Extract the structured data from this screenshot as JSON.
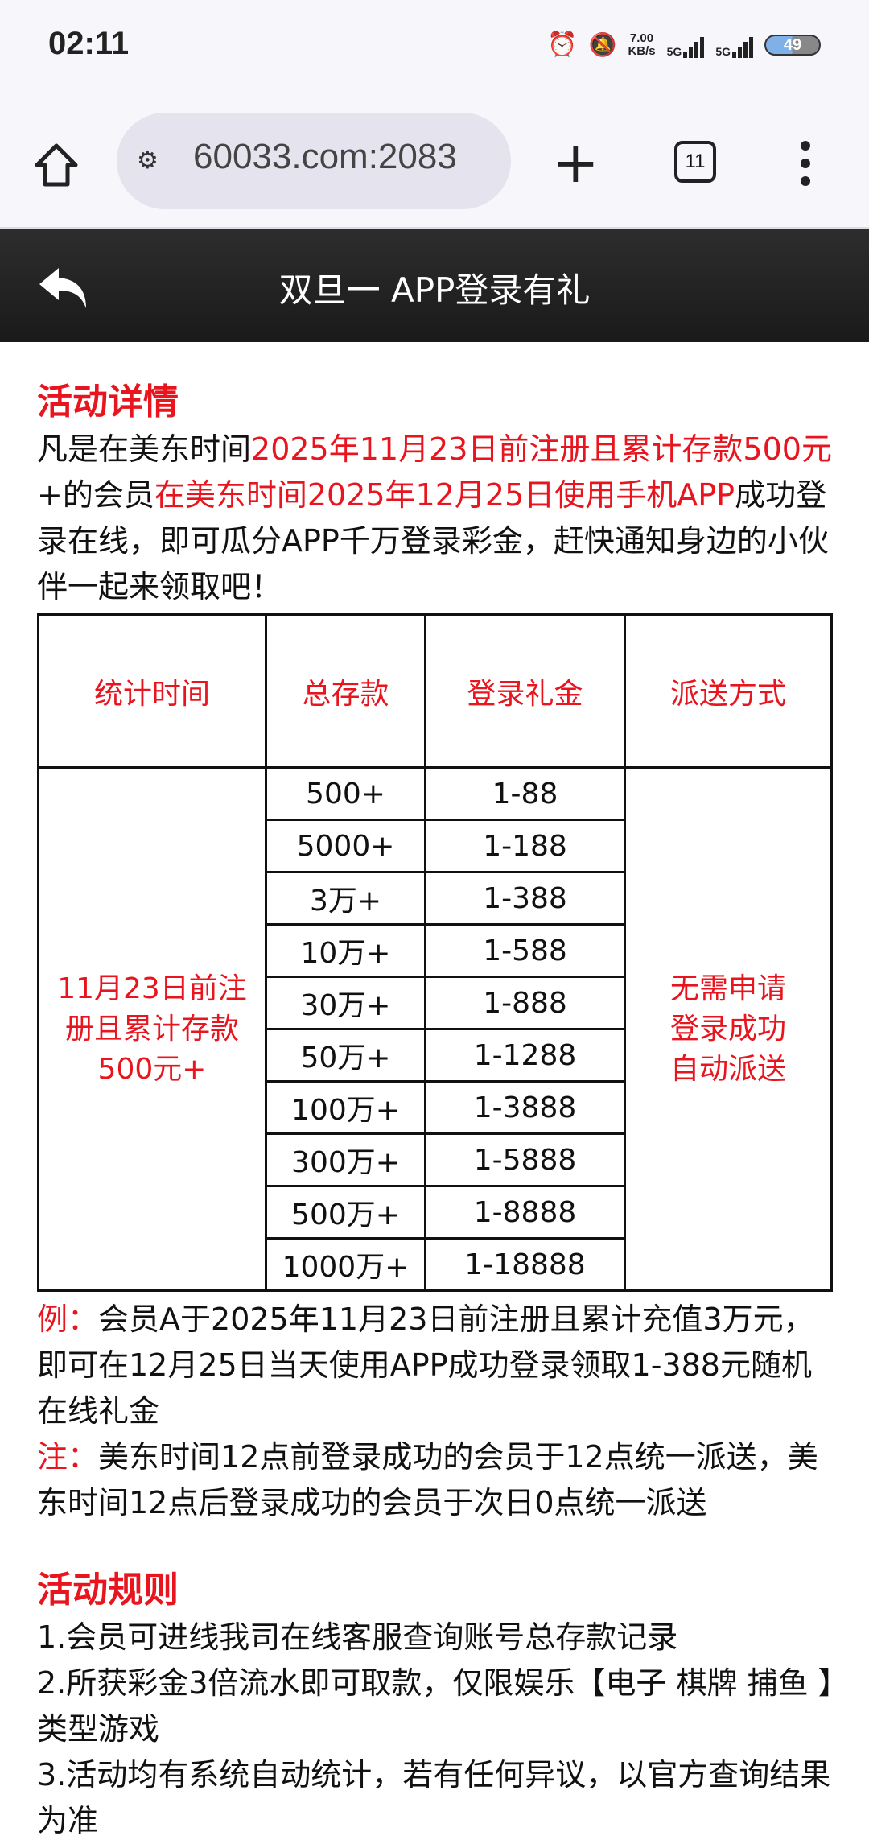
{
  "status_bar": {
    "time": "02:11",
    "speed_value": "7.00",
    "speed_unit": "KB/s",
    "sim1": "5G",
    "sim2": "5G",
    "battery": "49"
  },
  "browser": {
    "url": "60033.com:2083",
    "tab_count": "11"
  },
  "header": {
    "title": "双旦一 APP登录有礼"
  },
  "details": {
    "heading": "活动详情",
    "s1": "凡是在美东时间",
    "s2": "2025年11月23日前注册且累计存款500元",
    "s3": "+的会员",
    "s4": "在美东时间2025年12月25日使用手机APP",
    "s5": "成功登录在线，即可瓜分APP千万登录彩金，赶快通知身边的小伙伴一起来领取吧！"
  },
  "table": {
    "headers": [
      "统计时间",
      "总存款",
      "登录礼金",
      "派送方式"
    ],
    "period": "11月23日前注册且累计存款500元+",
    "delivery": "无需申请登录成功自动派送",
    "rows": [
      {
        "deposit": "500+",
        "bonus": "1-88"
      },
      {
        "deposit": "5000+",
        "bonus": "1-188"
      },
      {
        "deposit": "3万+",
        "bonus": "1-388"
      },
      {
        "deposit": "10万+",
        "bonus": "1-588"
      },
      {
        "deposit": "30万+",
        "bonus": "1-888"
      },
      {
        "deposit": "50万+",
        "bonus": "1-1288"
      },
      {
        "deposit": "100万+",
        "bonus": "1-3888"
      },
      {
        "deposit": "300万+",
        "bonus": "1-5888"
      },
      {
        "deposit": "500万+",
        "bonus": "1-8888"
      },
      {
        "deposit": "1000万+",
        "bonus": "1-18888"
      }
    ]
  },
  "example": {
    "label": "例：",
    "text": "会员A于2025年11月23日前注册且累计充值3万元，即可在12月25日当天使用APP成功登录领取1-388元随机在线礼金"
  },
  "note": {
    "label": "注：",
    "text": "美东时间12点前登录成功的会员于12点统一派送，美东时间12点后登录成功的会员于次日0点统一派送"
  },
  "rules": {
    "heading": "活动规则",
    "items": [
      "1.会员可进线我司在线客服查询账号总存款记录",
      "2.所获彩金3倍流水即可取款，仅限娱乐【电子 棋牌 捕鱼 】类型游戏",
      "3.活动均有系统自动统计，若有任何异议，以官方查询结果为准"
    ]
  },
  "colors": {
    "accent": "#e8141e",
    "header_bg": "#1f1f1f"
  }
}
